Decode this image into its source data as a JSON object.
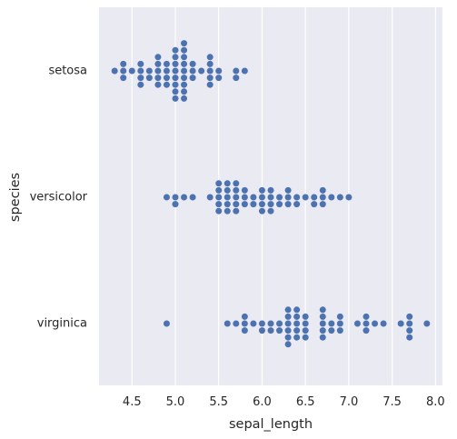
{
  "chart_data": {
    "type": "scatter",
    "subtype": "swarm",
    "xlabel": "sepal_length",
    "ylabel": "species",
    "categories": [
      "setosa",
      "versicolor",
      "virginica"
    ],
    "xlim": [
      4.12,
      8.08
    ],
    "xticks": [
      4.5,
      5.0,
      5.5,
      6.0,
      6.5,
      7.0,
      7.5,
      8.0
    ],
    "xtick_labels": [
      "4.5",
      "5.0",
      "5.5",
      "6.0",
      "6.5",
      "7.0",
      "7.5",
      "8.0"
    ],
    "grid": true,
    "style": "seaborn-darkgrid",
    "colors": {
      "point": "#4c72b0",
      "background": "#eaeaf2",
      "grid": "#ffffff"
    },
    "series": [
      {
        "values": [
          4.3,
          4.4,
          4.4,
          4.4,
          4.5,
          4.6,
          4.6,
          4.6,
          4.6,
          4.7,
          4.7,
          4.8,
          4.8,
          4.8,
          4.8,
          4.8,
          4.9,
          4.9,
          4.9,
          4.9,
          5.0,
          5.0,
          5.0,
          5.0,
          5.0,
          5.0,
          5.0,
          5.0,
          5.1,
          5.1,
          5.1,
          5.1,
          5.1,
          5.1,
          5.1,
          5.1,
          5.1,
          5.2,
          5.2,
          5.2,
          5.3,
          5.4,
          5.4,
          5.4,
          5.4,
          5.4,
          5.5,
          5.5,
          5.7,
          5.7,
          5.8
        ]
      },
      {
        "values": [
          4.9,
          5.0,
          5.0,
          5.1,
          5.2,
          5.4,
          5.5,
          5.5,
          5.5,
          5.5,
          5.5,
          5.6,
          5.6,
          5.6,
          5.6,
          5.6,
          5.7,
          5.7,
          5.7,
          5.7,
          5.7,
          5.8,
          5.8,
          5.8,
          5.9,
          5.9,
          6.0,
          6.0,
          6.0,
          6.0,
          6.1,
          6.1,
          6.1,
          6.1,
          6.2,
          6.2,
          6.3,
          6.3,
          6.3,
          6.4,
          6.4,
          6.5,
          6.6,
          6.6,
          6.7,
          6.7,
          6.7,
          6.8,
          6.9,
          7.0
        ]
      },
      {
        "values": [
          4.9,
          5.6,
          5.7,
          5.8,
          5.8,
          5.8,
          5.9,
          6.0,
          6.0,
          6.1,
          6.1,
          6.2,
          6.2,
          6.3,
          6.3,
          6.3,
          6.3,
          6.3,
          6.3,
          6.4,
          6.4,
          6.4,
          6.4,
          6.4,
          6.5,
          6.5,
          6.5,
          6.5,
          6.7,
          6.7,
          6.7,
          6.7,
          6.7,
          6.8,
          6.8,
          6.9,
          6.9,
          6.9,
          7.1,
          7.2,
          7.2,
          7.2,
          7.3,
          7.4,
          7.6,
          7.7,
          7.7,
          7.7,
          7.7,
          7.9
        ]
      }
    ]
  }
}
